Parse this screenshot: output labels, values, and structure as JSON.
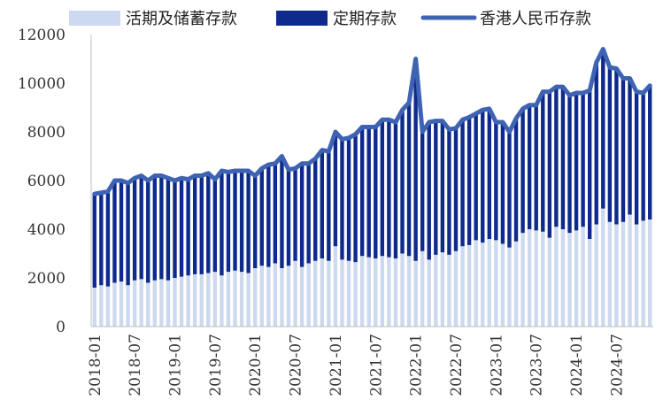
{
  "chart_data": {
    "type": "bar",
    "stacked": true,
    "x": [
      "2018-01",
      "2018-02",
      "2018-03",
      "2018-04",
      "2018-05",
      "2018-06",
      "2018-07",
      "2018-08",
      "2018-09",
      "2018-10",
      "2018-11",
      "2018-12",
      "2019-01",
      "2019-02",
      "2019-03",
      "2019-04",
      "2019-05",
      "2019-06",
      "2019-07",
      "2019-08",
      "2019-09",
      "2019-10",
      "2019-11",
      "2019-12",
      "2020-01",
      "2020-02",
      "2020-03",
      "2020-04",
      "2020-05",
      "2020-06",
      "2020-07",
      "2020-08",
      "2020-09",
      "2020-10",
      "2020-11",
      "2020-12",
      "2021-01",
      "2021-02",
      "2021-03",
      "2021-04",
      "2021-05",
      "2021-06",
      "2021-07",
      "2021-08",
      "2021-09",
      "2021-10",
      "2021-11",
      "2021-12",
      "2022-01",
      "2022-02",
      "2022-03",
      "2022-04",
      "2022-05",
      "2022-06",
      "2022-07",
      "2022-08",
      "2022-09",
      "2022-10",
      "2022-11",
      "2022-12",
      "2023-01",
      "2023-02",
      "2023-03",
      "2023-04",
      "2023-05",
      "2023-06",
      "2023-07",
      "2023-08",
      "2023-09",
      "2023-10",
      "2023-11",
      "2023-12",
      "2024-01",
      "2024-02",
      "2024-03",
      "2024-04",
      "2024-05",
      "2024-06",
      "2024-07",
      "2024-08",
      "2024-09",
      "2024-10",
      "2024-11",
      "2024-12"
    ],
    "xticks": [
      "2018-01",
      "2018-07",
      "2019-01",
      "2019-07",
      "2020-01",
      "2020-07",
      "2021-01",
      "2021-07",
      "2022-01",
      "2022-07",
      "2023-01",
      "2023-07",
      "2024-01",
      "2024-07"
    ],
    "series": [
      {
        "name": "活期及储蓄存款",
        "kind": "bar",
        "color": "#cdd9ee",
        "values": [
          1600,
          1700,
          1650,
          1800,
          1850,
          1700,
          1900,
          1950,
          1800,
          1900,
          1950,
          1900,
          2000,
          2050,
          2100,
          2150,
          2150,
          2200,
          2250,
          2100,
          2250,
          2300,
          2250,
          2200,
          2400,
          2500,
          2450,
          2600,
          2400,
          2500,
          2700,
          2450,
          2600,
          2700,
          2800,
          2700,
          3300,
          2750,
          2700,
          2650,
          2900,
          2850,
          2800,
          2900,
          2850,
          2800,
          3000,
          2900,
          2700,
          3100,
          2750,
          2950,
          3050,
          2950,
          3100,
          3300,
          3350,
          3550,
          3450,
          3600,
          3550,
          3400,
          3250,
          3500,
          3850,
          4000,
          3950,
          3900,
          3650,
          4100,
          4000,
          3850,
          3950,
          4100,
          3600,
          4200,
          4850,
          4300,
          4200,
          4300,
          4600,
          4200,
          4350,
          4400
        ]
      },
      {
        "name": "定期存款",
        "kind": "bar",
        "color": "#0d2a8c",
        "values": [
          3850,
          3800,
          3900,
          4200,
          4150,
          4200,
          4200,
          4250,
          4200,
          4300,
          4250,
          4200,
          4000,
          4050,
          3950,
          4050,
          4050,
          4100,
          3800,
          4300,
          4100,
          4100,
          4150,
          4200,
          3800,
          4000,
          4200,
          4100,
          4600,
          3950,
          3800,
          4250,
          4100,
          4200,
          4450,
          4500,
          4700,
          4950,
          5050,
          5250,
          5300,
          5350,
          5400,
          5600,
          5650,
          5600,
          5900,
          6300,
          8300,
          4900,
          5650,
          5500,
          5400,
          5150,
          5050,
          5200,
          5250,
          5200,
          5450,
          5350,
          4850,
          5000,
          4750,
          5050,
          5100,
          5100,
          5150,
          5750,
          6000,
          5750,
          5850,
          5650,
          5650,
          5500,
          6100,
          6650,
          6550,
          6350,
          6400,
          5900,
          5600,
          5450,
          5250,
          5500
        ]
      },
      {
        "name": "香港人民币存款",
        "kind": "line",
        "color": "#3f63b3",
        "values": [
          5450,
          5500,
          5550,
          6000,
          6000,
          5900,
          6100,
          6200,
          6000,
          6200,
          6200,
          6100,
          6000,
          6100,
          6050,
          6200,
          6200,
          6300,
          6050,
          6400,
          6350,
          6400,
          6400,
          6400,
          6200,
          6500,
          6650,
          6700,
          7000,
          6450,
          6500,
          6700,
          6700,
          6900,
          7250,
          7200,
          8000,
          7700,
          7750,
          7900,
          8200,
          8200,
          8200,
          8500,
          8500,
          8400,
          8900,
          9200,
          11000,
          8000,
          8400,
          8450,
          8450,
          8100,
          8150,
          8500,
          8600,
          8750,
          8900,
          8950,
          8400,
          8400,
          8000,
          8550,
          8950,
          9100,
          9100,
          9650,
          9650,
          9850,
          9850,
          9500,
          9600,
          9600,
          9700,
          10850,
          11400,
          10650,
          10600,
          10200,
          10200,
          9650,
          9600,
          9900
        ]
      }
    ],
    "legend": [
      "活期及储蓄存款",
      "定期存款",
      "香港人民币存款"
    ],
    "legend_position": "top",
    "ylim": [
      0,
      12000
    ],
    "yticks": [
      0,
      2000,
      4000,
      6000,
      8000,
      10000,
      12000
    ],
    "grid": false,
    "title": "",
    "xlabel": "",
    "ylabel": ""
  }
}
